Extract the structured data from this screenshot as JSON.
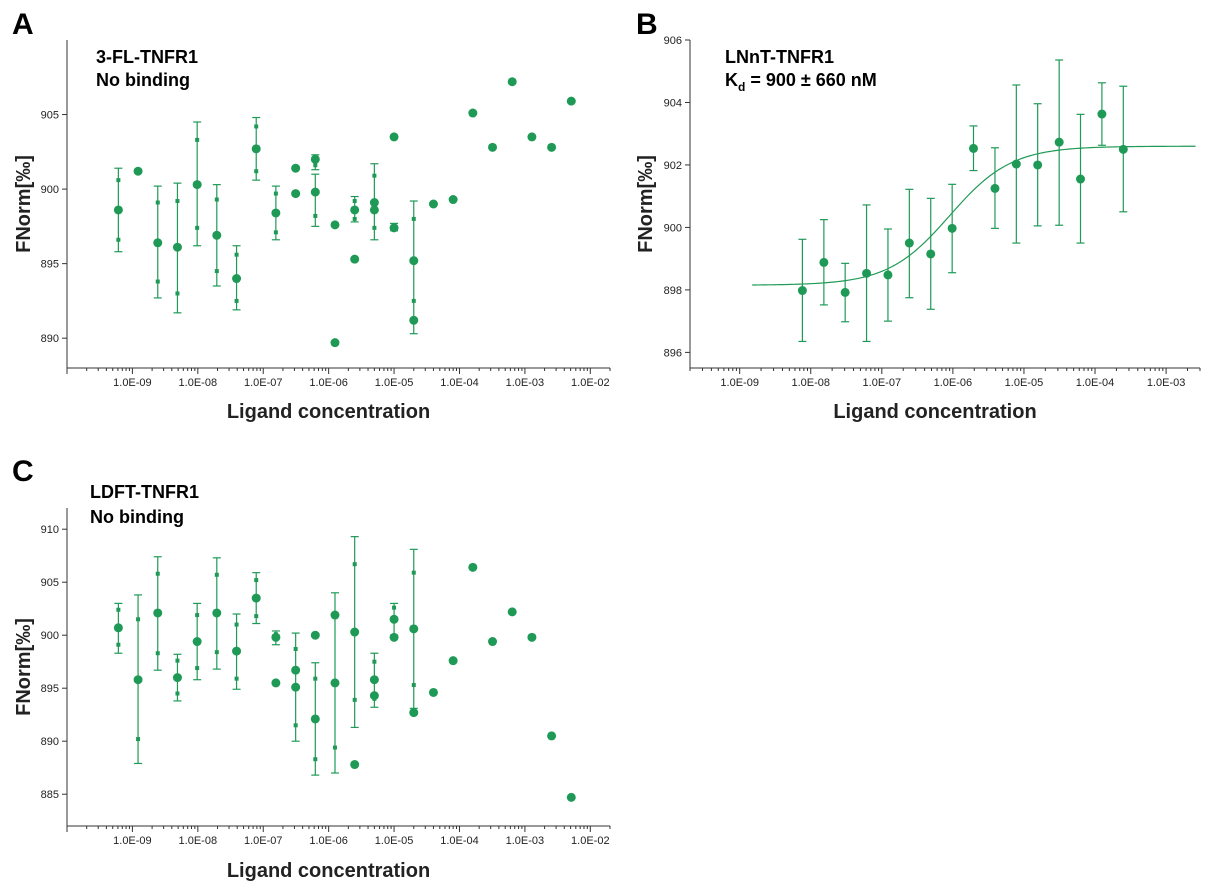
{
  "colors": {
    "marker": "#1f9a56",
    "axis": "#333333"
  },
  "panels": [
    {
      "letter": "A",
      "annotation_lines": [
        "3-FL-TNFR1",
        "No binding"
      ],
      "xlabel": "Ligand concentration",
      "ylabel": "FNorm[‰]"
    },
    {
      "letter": "B",
      "annotation_lines": [
        "LNnT-TNFR1",
        "Kd = 900 ± 660 nM"
      ],
      "xlabel": "Ligand concentration",
      "ylabel": "FNorm[‰]"
    },
    {
      "letter": "C",
      "annotation_lines": [
        "LDFT-TNFR1",
        "No binding"
      ],
      "xlabel": "Ligand concentration",
      "ylabel": "FNorm[‰]"
    }
  ],
  "chart_data": [
    {
      "type": "scatter",
      "panel": "A",
      "x_scale": "log",
      "xlim": [
        1e-10,
        0.02
      ],
      "ylim": [
        888,
        910
      ],
      "x_ticks": [
        "1.0E-09",
        "1.0E-08",
        "1.0E-07",
        "1.0E-06",
        "1.0E-05",
        "1.0E-04",
        "1.0E-03",
        "1.0E-02"
      ],
      "y_ticks": [
        890,
        895,
        900,
        905
      ],
      "points": [
        {
          "x": 6.1e-10,
          "y": 898.6,
          "err_lo": 895.8,
          "err_hi": 901.4,
          "reps": [
            900.6,
            896.6
          ]
        },
        {
          "x": 1.22e-09,
          "y": 901.2
        },
        {
          "x": 2.44e-09,
          "y": 896.4,
          "err_lo": 892.7,
          "err_hi": 900.2,
          "reps": [
            899.1,
            893.8
          ]
        },
        {
          "x": 4.88e-09,
          "y": 896.1,
          "err_lo": 891.7,
          "err_hi": 900.4,
          "reps": [
            899.2,
            893.0
          ]
        },
        {
          "x": 9.77e-09,
          "y": 900.3,
          "err_lo": 896.2,
          "err_hi": 904.5,
          "reps": [
            903.3,
            897.4
          ]
        },
        {
          "x": 1.95e-08,
          "y": 896.9,
          "err_lo": 893.5,
          "err_hi": 900.3,
          "reps": [
            899.3,
            894.5
          ]
        },
        {
          "x": 3.91e-08,
          "y": 894.0,
          "err_lo": 891.9,
          "err_hi": 896.2,
          "reps": [
            895.6,
            892.5
          ]
        },
        {
          "x": 7.81e-08,
          "y": 902.7,
          "err_lo": 900.6,
          "err_hi": 904.8,
          "reps": [
            904.2,
            901.2
          ]
        },
        {
          "x": 1.56e-07,
          "y": 898.4,
          "err_lo": 896.6,
          "err_hi": 900.2,
          "reps": [
            899.7,
            897.1
          ]
        },
        {
          "x": 3.13e-07,
          "y": 901.4
        },
        {
          "x": 3.13e-07,
          "y": 899.7
        },
        {
          "x": 6.25e-07,
          "y": 902.0,
          "err_lo": 901.3,
          "err_hi": 902.3,
          "reps": [
            901.6
          ]
        },
        {
          "x": 6.25e-07,
          "y": 899.8,
          "err_lo": 897.5,
          "err_hi": 901.0,
          "reps": [
            898.2
          ]
        },
        {
          "x": 1.25e-06,
          "y": 897.6
        },
        {
          "x": 1.25e-06,
          "y": 889.7
        },
        {
          "x": 2.5e-06,
          "y": 898.6,
          "err_lo": 897.8,
          "err_hi": 899.5,
          "reps": [
            899.2,
            898.0
          ]
        },
        {
          "x": 2.5e-06,
          "y": 895.3
        },
        {
          "x": 5e-06,
          "y": 899.1,
          "err_lo": 896.6,
          "err_hi": 901.7,
          "reps": [
            900.9,
            897.4
          ]
        },
        {
          "x": 5e-06,
          "y": 898.6
        },
        {
          "x": 1e-05,
          "y": 903.5
        },
        {
          "x": 1e-05,
          "y": 897.4,
          "err_lo": 897.2,
          "err_hi": 897.7,
          "reps": []
        },
        {
          "x": 2e-05,
          "y": 895.2,
          "err_lo": 890.3,
          "err_hi": 899.2,
          "reps": [
            898.0,
            892.5
          ]
        },
        {
          "x": 2e-05,
          "y": 891.2
        },
        {
          "x": 4e-05,
          "y": 899.0
        },
        {
          "x": 8e-05,
          "y": 899.3
        },
        {
          "x": 0.00016,
          "y": 905.1
        },
        {
          "x": 0.00032,
          "y": 902.8
        },
        {
          "x": 0.00064,
          "y": 907.2
        },
        {
          "x": 0.00128,
          "y": 903.5
        },
        {
          "x": 0.00256,
          "y": 902.8
        },
        {
          "x": 0.00512,
          "y": 905.9
        }
      ]
    },
    {
      "type": "scatter",
      "panel": "B",
      "x_scale": "log",
      "xlim": [
        2e-10,
        0.003
      ],
      "ylim": [
        895.5,
        906
      ],
      "x_ticks": [
        "1.0E-09",
        "1.0E-08",
        "1.0E-07",
        "1.0E-06",
        "1.0E-05",
        "1.0E-04",
        "1.0E-03"
      ],
      "y_ticks": [
        896,
        898,
        900,
        902,
        904,
        906
      ],
      "fit": {
        "bottom": 898.15,
        "top": 902.6,
        "kd": 9e-07,
        "xmin": 1.5e-09,
        "xmax": 0.0026
      },
      "points": [
        {
          "x": 7.63e-09,
          "y": 897.98,
          "err_lo": 896.35,
          "err_hi": 899.62
        },
        {
          "x": 1.53e-08,
          "y": 898.88,
          "err_lo": 897.52,
          "err_hi": 900.25
        },
        {
          "x": 3.05e-08,
          "y": 897.92,
          "err_lo": 896.98,
          "err_hi": 898.85
        },
        {
          "x": 6.1e-08,
          "y": 898.53,
          "err_lo": 896.35,
          "err_hi": 900.72
        },
        {
          "x": 1.22e-07,
          "y": 898.48,
          "err_lo": 897.0,
          "err_hi": 899.95
        },
        {
          "x": 2.44e-07,
          "y": 899.5,
          "err_lo": 897.75,
          "err_hi": 901.22
        },
        {
          "x": 4.88e-07,
          "y": 899.15,
          "err_lo": 897.38,
          "err_hi": 900.93
        },
        {
          "x": 9.77e-07,
          "y": 899.97,
          "err_lo": 898.55,
          "err_hi": 901.38
        },
        {
          "x": 1.95e-06,
          "y": 902.53,
          "err_lo": 901.82,
          "err_hi": 903.25
        },
        {
          "x": 3.91e-06,
          "y": 901.25,
          "err_lo": 899.97,
          "err_hi": 902.55
        },
        {
          "x": 7.81e-06,
          "y": 902.03,
          "err_lo": 899.5,
          "err_hi": 904.56
        },
        {
          "x": 1.56e-05,
          "y": 902.0,
          "err_lo": 900.05,
          "err_hi": 903.96
        },
        {
          "x": 3.13e-05,
          "y": 902.73,
          "err_lo": 900.07,
          "err_hi": 905.36
        },
        {
          "x": 6.25e-05,
          "y": 901.55,
          "err_lo": 899.5,
          "err_hi": 903.62
        },
        {
          "x": 0.000125,
          "y": 903.63,
          "err_lo": 902.63,
          "err_hi": 904.63
        },
        {
          "x": 0.00025,
          "y": 902.5,
          "err_lo": 900.5,
          "err_hi": 904.52
        }
      ]
    },
    {
      "type": "scatter",
      "panel": "C",
      "x_scale": "log",
      "xlim": [
        1e-10,
        0.02
      ],
      "ylim": [
        882,
        912
      ],
      "x_ticks": [
        "1.0E-09",
        "1.0E-08",
        "1.0E-07",
        "1.0E-06",
        "1.0E-05",
        "1.0E-04",
        "1.0E-03",
        "1.0E-02"
      ],
      "y_ticks": [
        885,
        890,
        895,
        900,
        905,
        910
      ],
      "points": [
        {
          "x": 6.1e-10,
          "y": 900.7,
          "err_lo": 898.3,
          "err_hi": 903.0,
          "reps": [
            902.4,
            899.1
          ]
        },
        {
          "x": 1.22e-09,
          "y": 895.8,
          "err_lo": 887.9,
          "err_hi": 903.8,
          "reps": [
            901.5,
            890.2
          ]
        },
        {
          "x": 2.44e-09,
          "y": 902.1,
          "err_lo": 896.7,
          "err_hi": 907.4,
          "reps": [
            905.8,
            898.3
          ]
        },
        {
          "x": 4.88e-09,
          "y": 896.0,
          "err_lo": 893.8,
          "err_hi": 898.2,
          "reps": [
            897.6,
            894.5
          ]
        },
        {
          "x": 9.77e-09,
          "y": 899.4,
          "err_lo": 895.8,
          "err_hi": 903.0,
          "reps": [
            901.9,
            896.9
          ]
        },
        {
          "x": 1.95e-08,
          "y": 902.1,
          "err_lo": 896.8,
          "err_hi": 907.3,
          "reps": [
            905.7,
            898.4
          ]
        },
        {
          "x": 3.91e-08,
          "y": 898.5,
          "err_lo": 894.9,
          "err_hi": 902.0,
          "reps": [
            901.0,
            895.9
          ]
        },
        {
          "x": 7.81e-08,
          "y": 903.5,
          "err_lo": 901.1,
          "err_hi": 905.9,
          "reps": [
            905.2,
            901.8
          ]
        },
        {
          "x": 1.56e-07,
          "y": 899.8,
          "err_lo": 899.1,
          "err_hi": 900.4,
          "reps": [
            900.1
          ]
        },
        {
          "x": 1.56e-07,
          "y": 895.5
        },
        {
          "x": 3.13e-07,
          "y": 896.7,
          "err_lo": 890.0,
          "err_hi": 900.2,
          "reps": [
            898.7,
            891.5
          ]
        },
        {
          "x": 3.13e-07,
          "y": 895.1
        },
        {
          "x": 6.25e-07,
          "y": 900.0
        },
        {
          "x": 6.25e-07,
          "y": 892.1,
          "err_lo": 886.8,
          "err_hi": 897.4,
          "reps": [
            895.9,
            888.3
          ]
        },
        {
          "x": 1.25e-06,
          "y": 901.9,
          "err_lo": 887.0,
          "err_hi": 904.0,
          "reps": [
            889.4
          ]
        },
        {
          "x": 1.25e-06,
          "y": 895.5
        },
        {
          "x": 2.5e-06,
          "y": 900.3,
          "err_lo": 891.3,
          "err_hi": 909.3,
          "reps": [
            906.7,
            893.9
          ]
        },
        {
          "x": 2.5e-06,
          "y": 887.8
        },
        {
          "x": 5e-06,
          "y": 895.8,
          "err_lo": 893.2,
          "err_hi": 898.3,
          "reps": [
            897.5,
            894.0
          ]
        },
        {
          "x": 5e-06,
          "y": 894.3
        },
        {
          "x": 1e-05,
          "y": 901.5,
          "err_lo": 900.0,
          "err_hi": 903.0,
          "reps": [
            902.6
          ]
        },
        {
          "x": 1e-05,
          "y": 899.8
        },
        {
          "x": 2e-05,
          "y": 900.6,
          "err_lo": 893.1,
          "err_hi": 908.1,
          "reps": [
            905.9,
            895.3
          ]
        },
        {
          "x": 2e-05,
          "y": 892.7
        },
        {
          "x": 4e-05,
          "y": 894.6
        },
        {
          "x": 8e-05,
          "y": 897.6
        },
        {
          "x": 0.00016,
          "y": 906.4
        },
        {
          "x": 0.00032,
          "y": 899.4
        },
        {
          "x": 0.00064,
          "y": 902.2
        },
        {
          "x": 0.00128,
          "y": 899.8
        },
        {
          "x": 0.00256,
          "y": 890.5
        },
        {
          "x": 0.00512,
          "y": 884.7
        }
      ]
    }
  ]
}
